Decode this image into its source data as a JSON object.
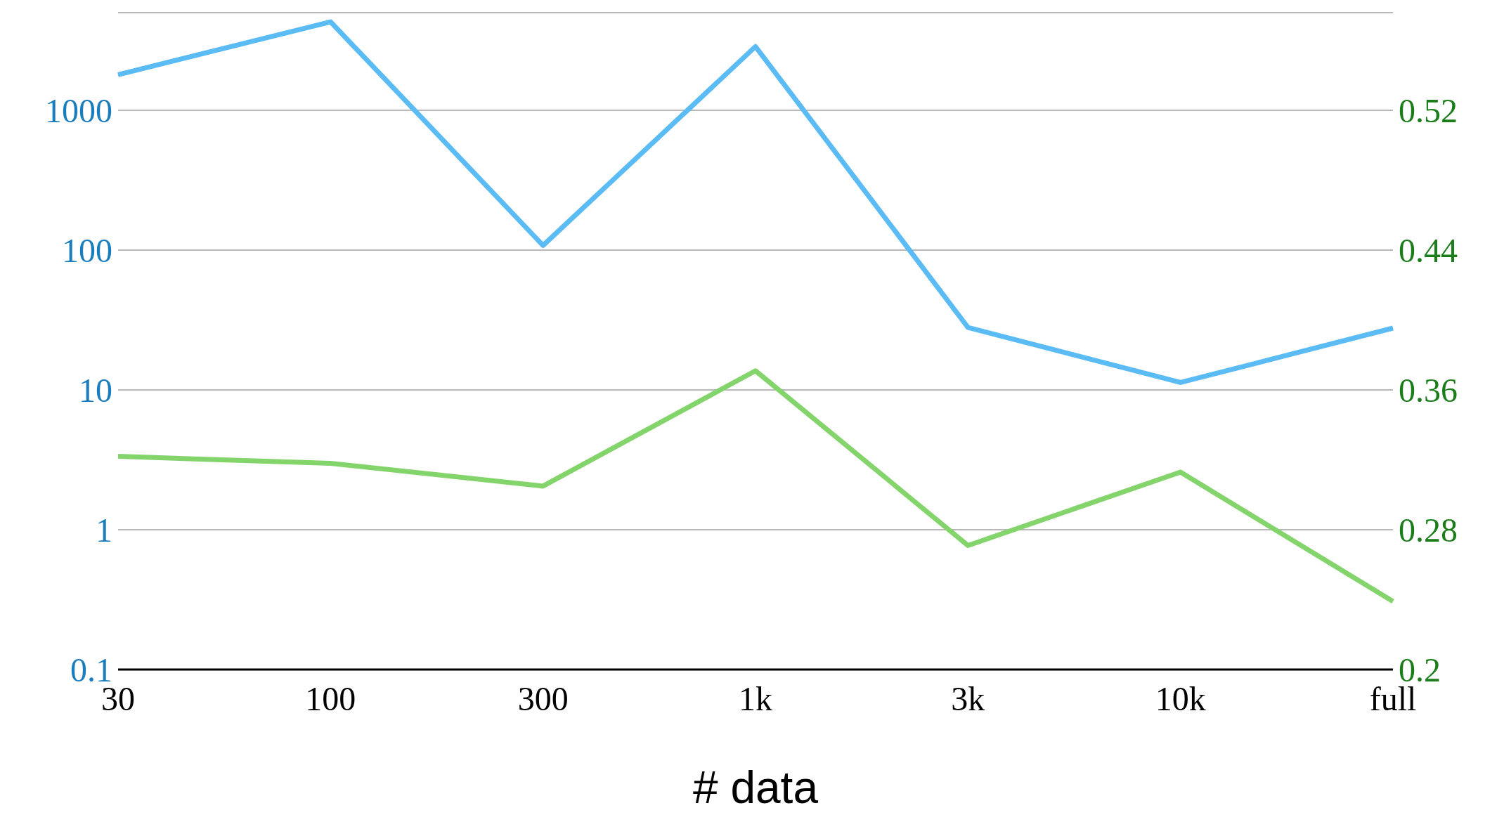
{
  "chart_data": {
    "type": "line",
    "xlabel": "# data",
    "categories": [
      "30",
      "100",
      "300",
      "1k",
      "3k",
      "10k",
      "full"
    ],
    "series": [
      {
        "color": "#5bbcf5",
        "values": [
          1800,
          4300,
          108,
          2860,
          28,
          11.3,
          27.7
        ]
      },
      {
        "color": "#84d46c",
        "axis": "y2",
        "values": [
          0.322,
          0.318,
          0.305,
          0.371,
          0.271,
          0.313,
          0.239
        ]
      }
    ],
    "log": "y",
    "ylim": [
      0.1,
      5000
    ],
    "yticks": [
      0.1,
      1,
      10,
      100,
      1000
    ],
    "y2lim": [
      0.2,
      0.576
    ],
    "y2ticks": [
      0.2,
      0.28,
      0.36,
      0.44,
      0.52
    ],
    "grid": "y",
    "marker": "none",
    "line_style": "solid"
  }
}
